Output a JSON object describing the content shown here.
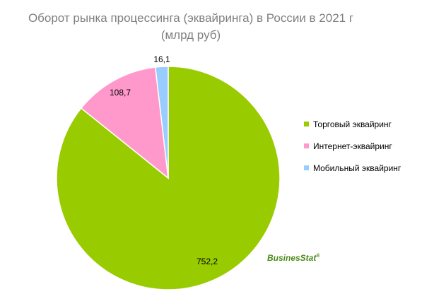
{
  "chart_data": {
    "type": "pie",
    "title_lines": [
      "Оборот рынка процессинга (эквайринга) в России в 2021 г",
      "(млрд руб)"
    ],
    "slices": [
      {
        "name": "Торговый эквайринг",
        "value": 752.2,
        "label": "752,2",
        "color": "#99cc00"
      },
      {
        "name": "Интернет-эквайринг",
        "value": 108.7,
        "label": "108,7",
        "color": "#ff99cc"
      },
      {
        "name": "Мобильный эквайринг",
        "value": 16.1,
        "label": "16,1",
        "color": "#99ccff"
      }
    ],
    "legend_position": "right"
  },
  "watermark": {
    "text": "BusinesStat",
    "mark": "®"
  }
}
